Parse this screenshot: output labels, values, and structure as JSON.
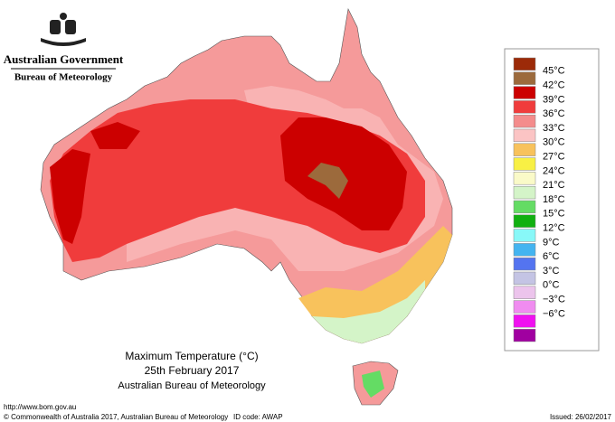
{
  "header": {
    "line1": "Australian Government",
    "line2": "Bureau of Meteorology"
  },
  "legend": {
    "colors": [
      "#9c2a08",
      "#9c6a3c",
      "#cc0000",
      "#f03c3c",
      "#f48c8c",
      "#fbc4c4",
      "#f8c25c",
      "#f8f044",
      "#fafac8",
      "#d4f4c8",
      "#64dc64",
      "#10b010",
      "#88f8f8",
      "#44b4f0",
      "#5474f0",
      "#c4c4e4",
      "#ecc4ec",
      "#f08cf0",
      "#f010f0",
      "#a000a0"
    ],
    "labels": [
      "45°C",
      "42°C",
      "39°C",
      "36°C",
      "33°C",
      "30°C",
      "27°C",
      "24°C",
      "21°C",
      "18°C",
      "15°C",
      "12°C",
      "9°C",
      "6°C",
      "3°C",
      "0°C",
      "−3°C",
      "−6°C"
    ]
  },
  "title": {
    "line1": "Maximum Temperature (°C)",
    "line2": "25th February 2017",
    "line3": "Australian Bureau of Meteorology"
  },
  "footer": {
    "url": "http://www.bom.gov.au",
    "copyright": "© Commonwealth of Australia 2017, Australian Bureau of Meteorology",
    "id_code": "ID code: AWAP",
    "issued": "Issued: 26/02/2017"
  }
}
